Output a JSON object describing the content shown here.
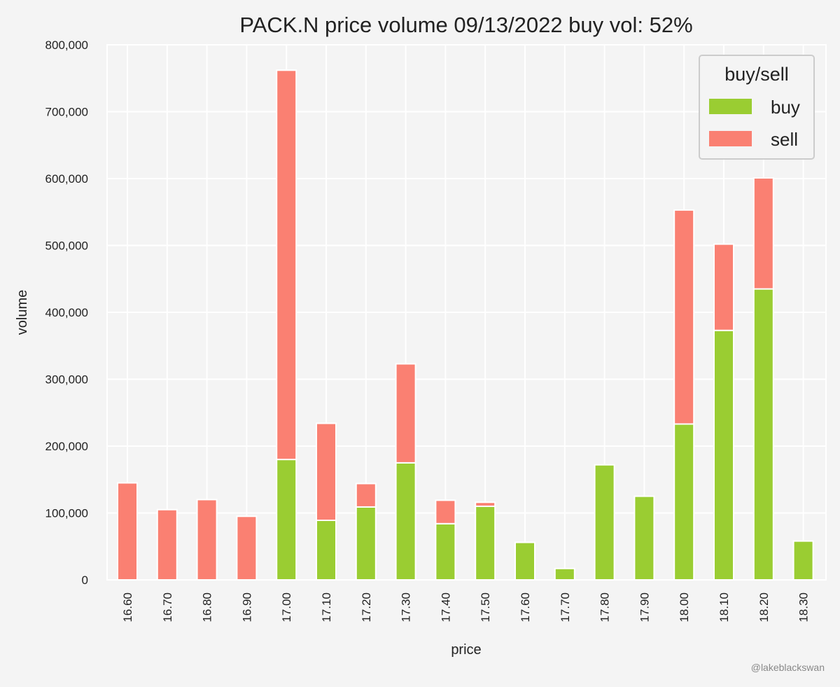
{
  "chart_data": {
    "type": "bar",
    "stacked": true,
    "title": "PACK.N price volume 09/13/2022 buy vol: 52%",
    "xlabel": "price",
    "ylabel": "volume",
    "ylim": [
      0,
      800000
    ],
    "yticks": [
      0,
      100000,
      200000,
      300000,
      400000,
      500000,
      600000,
      700000,
      800000
    ],
    "ytick_labels": [
      "0",
      "100,000",
      "200,000",
      "300,000",
      "400,000",
      "500,000",
      "600,000",
      "700,000",
      "800,000"
    ],
    "categories": [
      "16.60",
      "16.70",
      "16.80",
      "16.90",
      "17.00",
      "17.10",
      "17.20",
      "17.30",
      "17.40",
      "17.50",
      "17.60",
      "17.70",
      "17.80",
      "17.90",
      "18.00",
      "18.10",
      "18.20",
      "18.30"
    ],
    "series": [
      {
        "name": "buy",
        "color": "#9acd32",
        "values": [
          0,
          0,
          0,
          0,
          180000,
          89000,
          109000,
          175000,
          84000,
          110000,
          56000,
          17000,
          172000,
          125000,
          233000,
          373000,
          435000,
          58000
        ]
      },
      {
        "name": "sell",
        "color": "#fa8072",
        "values": [
          145000,
          105000,
          120000,
          95000,
          582000,
          145000,
          35000,
          148000,
          35000,
          6000,
          0,
          0,
          0,
          0,
          320000,
          129000,
          166000,
          0
        ]
      }
    ],
    "legend": {
      "title": "buy/sell",
      "position": "top-right"
    },
    "grid": true
  },
  "credit": "@lakeblackswan"
}
